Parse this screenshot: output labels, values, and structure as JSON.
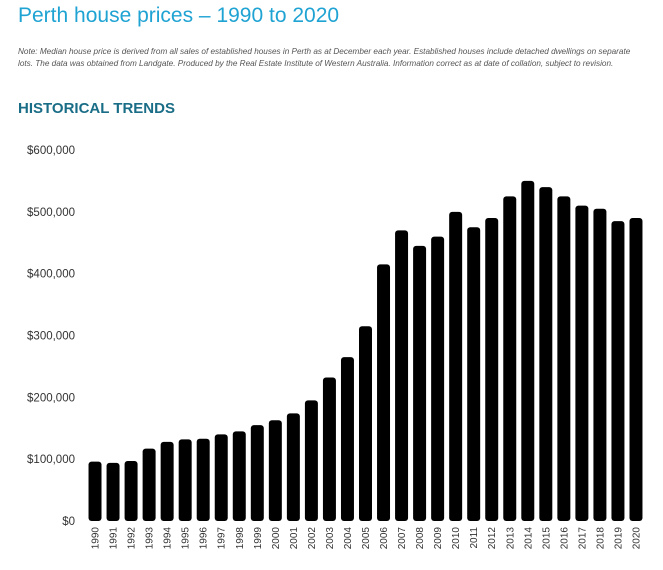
{
  "header": {
    "title": "Perth house prices – 1990 to 2020",
    "note": "Note: Median house price is derived from all sales of established houses in Perth as at December each year.  Established houses include detached dwellings on separate lots. The data was obtained from Landgate. Produced by the Real Estate Institute of Western Australia. Information correct as at date of collation, subject to revision.",
    "section_heading": "HISTORICAL TRENDS"
  },
  "chart_data": {
    "type": "bar",
    "title": "",
    "xlabel": "",
    "ylabel": "",
    "ylim": [
      0,
      600000
    ],
    "grid": false,
    "bar_color": "#000000",
    "y_ticks": [
      0,
      100000,
      200000,
      300000,
      400000,
      500000,
      600000
    ],
    "y_tick_labels": [
      "$0",
      "$100,000",
      "$200,000",
      "$300,000",
      "$400,000",
      "$500,000",
      "$600,000"
    ],
    "categories": [
      "1990",
      "1991",
      "1992",
      "1993",
      "1994",
      "1995",
      "1996",
      "1997",
      "1998",
      "1999",
      "2000",
      "2001",
      "2002",
      "2003",
      "2004",
      "2005",
      "2006",
      "2007",
      "2008",
      "2009",
      "2010",
      "2011",
      "2012",
      "2013",
      "2014",
      "2015",
      "2016",
      "2017",
      "2018",
      "2019",
      "2020"
    ],
    "values": [
      96000,
      94000,
      97000,
      117000,
      128000,
      132000,
      133000,
      140000,
      145000,
      155000,
      163000,
      174000,
      195000,
      232000,
      265000,
      315000,
      415000,
      470000,
      445000,
      460000,
      500000,
      475000,
      490000,
      525000,
      550000,
      540000,
      525000,
      510000,
      505000,
      485000,
      490000
    ]
  }
}
